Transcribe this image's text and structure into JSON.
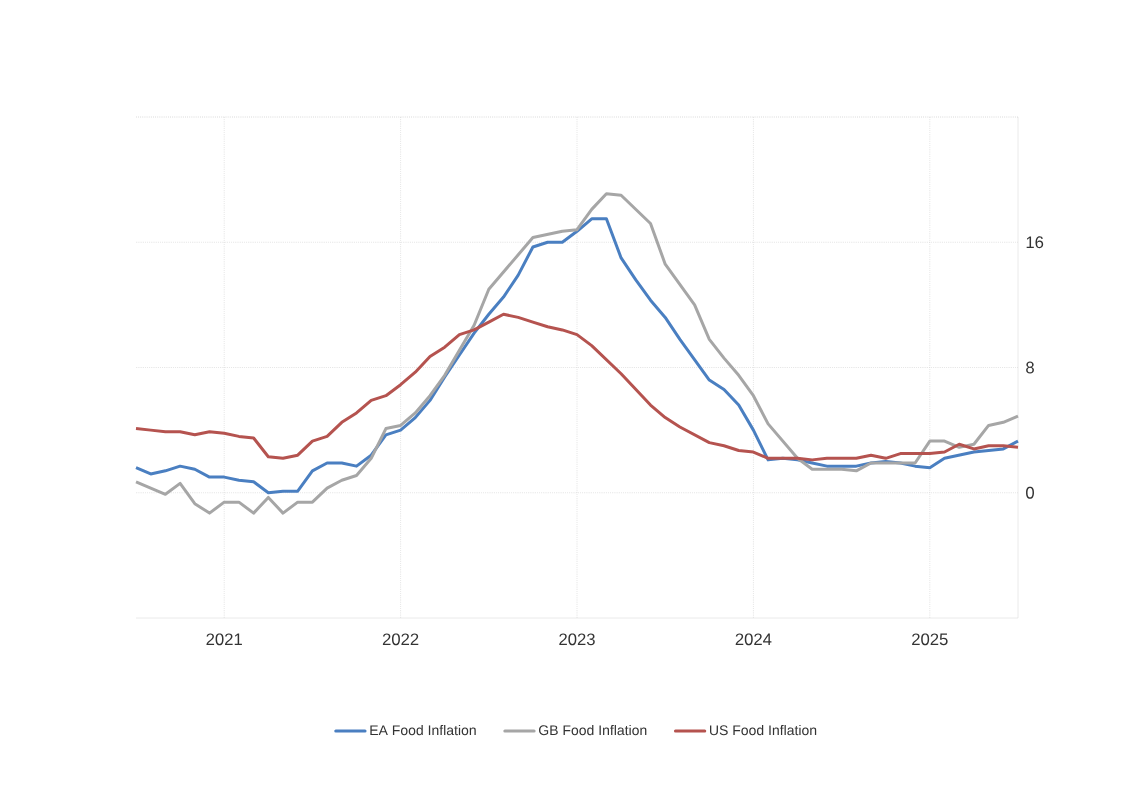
{
  "chart_data": {
    "type": "line",
    "x": [
      "2020-07",
      "2020-08",
      "2020-09",
      "2020-10",
      "2020-11",
      "2020-12",
      "2021-01",
      "2021-02",
      "2021-03",
      "2021-04",
      "2021-05",
      "2021-06",
      "2021-07",
      "2021-08",
      "2021-09",
      "2021-10",
      "2021-11",
      "2021-12",
      "2022-01",
      "2022-02",
      "2022-03",
      "2022-04",
      "2022-05",
      "2022-06",
      "2022-07",
      "2022-08",
      "2022-09",
      "2022-10",
      "2022-11",
      "2022-12",
      "2023-01",
      "2023-02",
      "2023-03",
      "2023-04",
      "2023-05",
      "2023-06",
      "2023-07",
      "2023-08",
      "2023-09",
      "2023-10",
      "2023-11",
      "2023-12",
      "2024-01",
      "2024-02",
      "2024-03",
      "2024-04",
      "2024-05",
      "2024-06",
      "2024-07",
      "2024-08",
      "2024-09",
      "2024-10",
      "2024-11",
      "2024-12",
      "2025-01",
      "2025-02",
      "2025-03",
      "2025-04",
      "2025-05",
      "2025-06",
      "2025-07"
    ],
    "series": [
      {
        "name": "EA Food Inflation",
        "color": "#4a7fc1",
        "values": [
          1.6,
          1.2,
          1.4,
          1.7,
          1.5,
          1.0,
          1.0,
          0.8,
          0.7,
          0.0,
          0.1,
          0.1,
          1.4,
          1.9,
          1.9,
          1.7,
          2.4,
          3.7,
          4.0,
          4.8,
          5.9,
          7.4,
          8.8,
          10.2,
          11.4,
          12.5,
          13.9,
          15.7,
          16.0,
          16.0,
          16.7,
          17.5,
          17.5,
          15.0,
          13.6,
          12.3,
          11.2,
          9.8,
          8.5,
          7.2,
          6.6,
          5.6,
          4.0,
          2.1,
          2.2,
          2.1,
          1.9,
          1.7,
          1.7,
          1.7,
          1.9,
          2.0,
          1.9,
          1.7,
          1.6,
          2.2,
          2.4,
          2.6,
          2.7,
          2.8,
          3.3
        ]
      },
      {
        "name": "GB Food Inflation",
        "color": "#a6a6a6",
        "values": [
          0.7,
          0.3,
          -0.1,
          0.6,
          -0.7,
          -1.3,
          -0.6,
          -0.6,
          -1.3,
          -0.3,
          -1.3,
          -0.6,
          -0.6,
          0.3,
          0.8,
          1.1,
          2.2,
          4.1,
          4.3,
          5.1,
          6.2,
          7.5,
          9.1,
          10.7,
          13.0,
          14.1,
          15.2,
          16.3,
          16.5,
          16.7,
          16.8,
          18.1,
          19.1,
          19.0,
          18.1,
          17.2,
          14.6,
          13.3,
          12.0,
          9.8,
          8.6,
          7.5,
          6.2,
          4.4,
          3.3,
          2.2,
          1.5,
          1.5,
          1.5,
          1.4,
          1.9,
          1.9,
          1.9,
          1.9,
          3.3,
          3.3,
          2.9,
          3.1,
          4.3,
          4.5,
          4.9
        ]
      },
      {
        "name": "US Food Inflation",
        "color": "#b5534f",
        "values": [
          4.1,
          4.0,
          3.9,
          3.9,
          3.7,
          3.9,
          3.8,
          3.6,
          3.5,
          2.3,
          2.2,
          2.4,
          3.3,
          3.6,
          4.5,
          5.1,
          5.9,
          6.2,
          6.9,
          7.7,
          8.7,
          9.3,
          10.1,
          10.4,
          10.9,
          11.4,
          11.2,
          10.9,
          10.6,
          10.4,
          10.1,
          9.4,
          8.5,
          7.6,
          6.6,
          5.6,
          4.8,
          4.2,
          3.7,
          3.2,
          3.0,
          2.7,
          2.6,
          2.2,
          2.2,
          2.2,
          2.1,
          2.2,
          2.2,
          2.2,
          2.4,
          2.2,
          2.5,
          2.5,
          2.5,
          2.6,
          3.1,
          2.8,
          3.0,
          3.0,
          2.9
        ]
      }
    ],
    "xlim": [
      "2020-07",
      "2025-07"
    ],
    "xticks": [
      "2021",
      "2022",
      "2023",
      "2024",
      "2025"
    ],
    "ylim": [
      -8,
      24
    ],
    "yticks": [
      0,
      8,
      16
    ],
    "grid": true,
    "legend": "bottom"
  }
}
